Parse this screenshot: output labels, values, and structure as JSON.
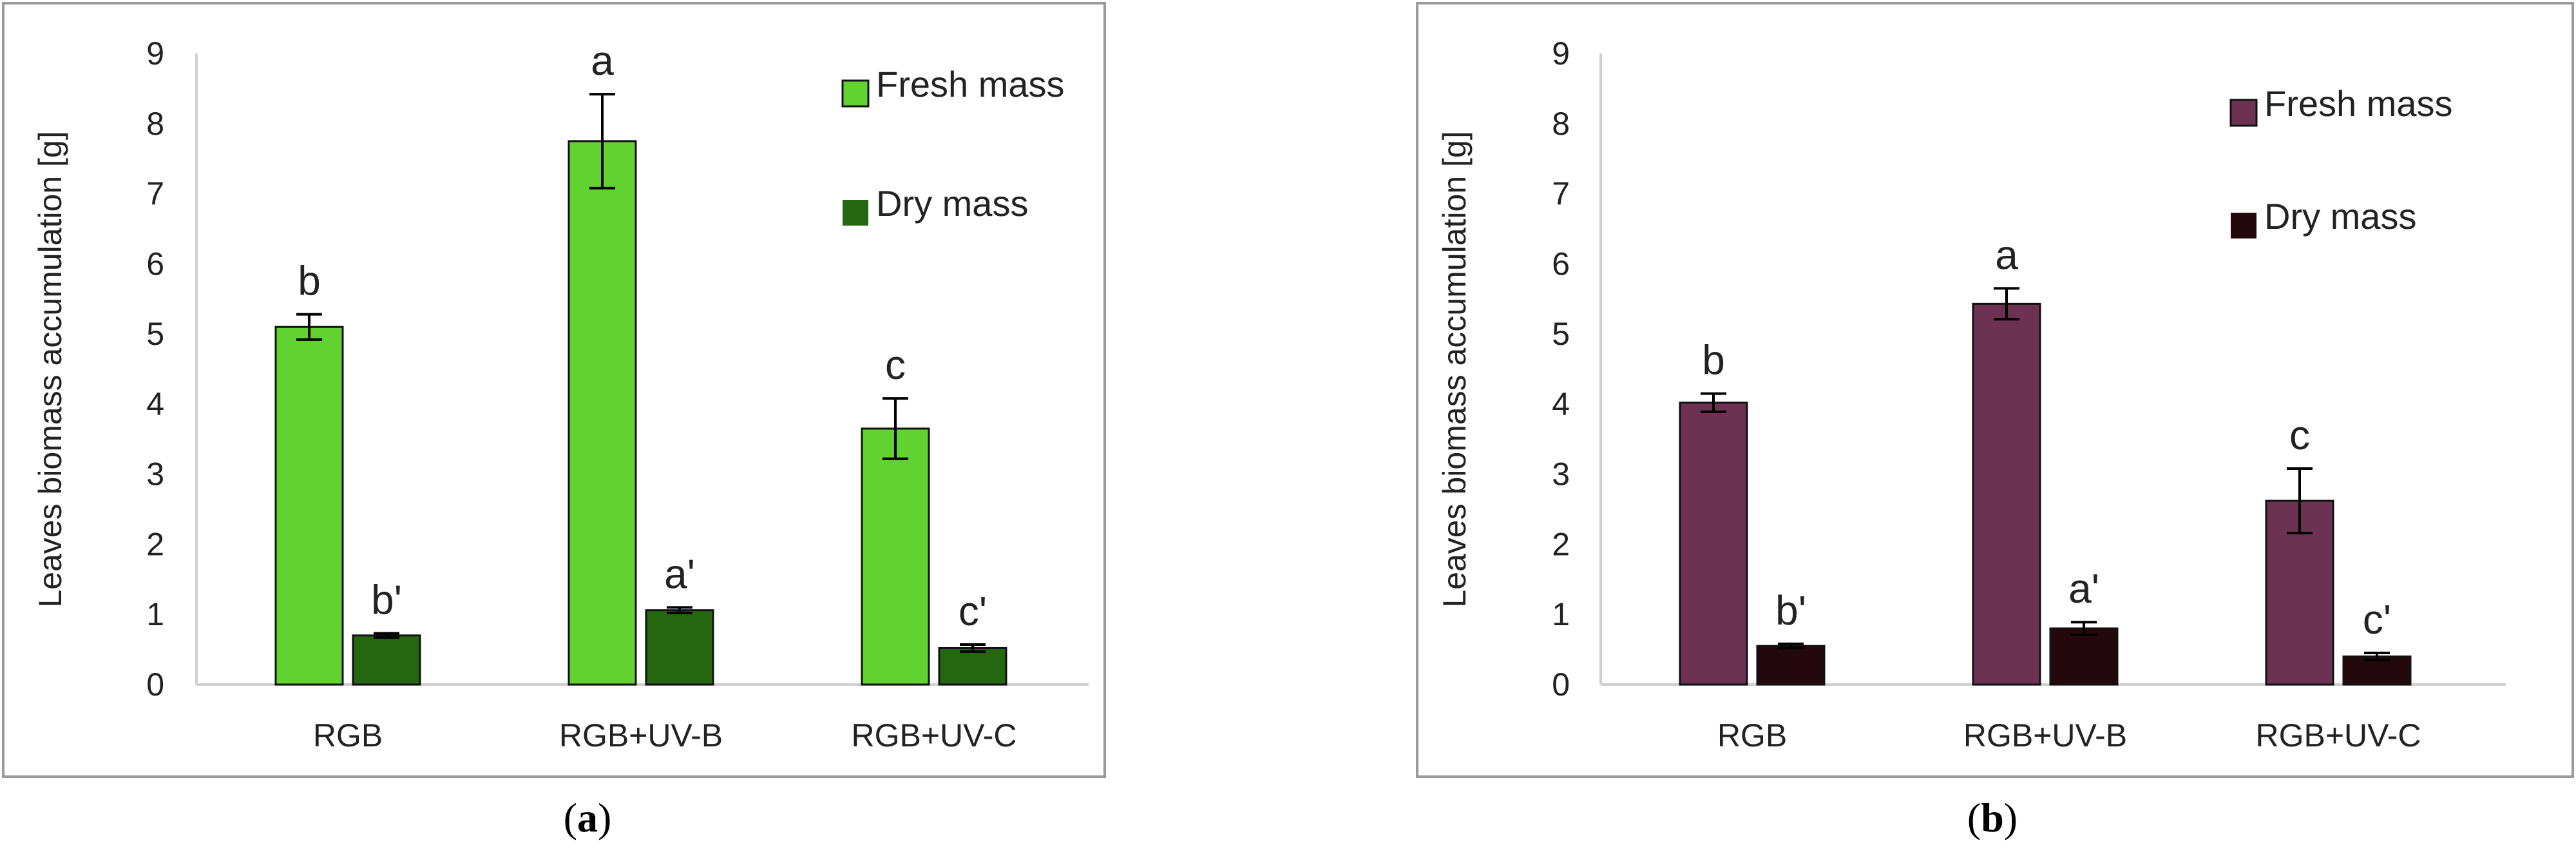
{
  "chart_data": [
    {
      "type": "bar",
      "panel_label": "(a)",
      "caption_letter": "a",
      "ylabel": "Leaves biomass accumulation [g]",
      "xlabel": "",
      "ylim": [
        0,
        9
      ],
      "yticks": [
        "0",
        "1",
        "2",
        "3",
        "4",
        "5",
        "6",
        "7",
        "8",
        "9"
      ],
      "categories": [
        "RGB",
        "RGB+UV-B",
        "RGB+UV-C"
      ],
      "legend_position": "top-right",
      "series": [
        {
          "name": "Fresh mass",
          "color": "#62d230",
          "values": [
            5.1,
            7.75,
            3.65
          ],
          "errors": [
            0.18,
            0.67,
            0.43
          ],
          "labels": [
            "b",
            "a",
            "c"
          ]
        },
        {
          "name": "Dry mass",
          "color": "#256711",
          "values": [
            0.7,
            1.06,
            0.52
          ],
          "errors": [
            0.03,
            0.04,
            0.05
          ],
          "labels": [
            "b'",
            "a'",
            "c'"
          ]
        }
      ]
    },
    {
      "type": "bar",
      "panel_label": "(b)",
      "caption_letter": "b",
      "ylabel": "Leaves biomass accumulation [g]",
      "xlabel": "",
      "ylim": [
        0,
        9
      ],
      "yticks": [
        "0",
        "1",
        "2",
        "3",
        "4",
        "5",
        "6",
        "7",
        "8",
        "9"
      ],
      "categories": [
        "RGB",
        "RGB+UV-B",
        "RGB+UV-C"
      ],
      "legend_position": "top-right",
      "series": [
        {
          "name": "Fresh mass",
          "color": "#6d3252",
          "values": [
            4.02,
            5.43,
            2.62
          ],
          "errors": [
            0.13,
            0.22,
            0.46
          ],
          "labels": [
            "b",
            "a",
            "c"
          ]
        },
        {
          "name": "Dry mass",
          "color": "#25080e",
          "values": [
            0.55,
            0.8,
            0.4
          ],
          "errors": [
            0.03,
            0.09,
            0.05
          ],
          "labels": [
            "b'",
            "a'",
            "c'"
          ]
        }
      ]
    }
  ]
}
